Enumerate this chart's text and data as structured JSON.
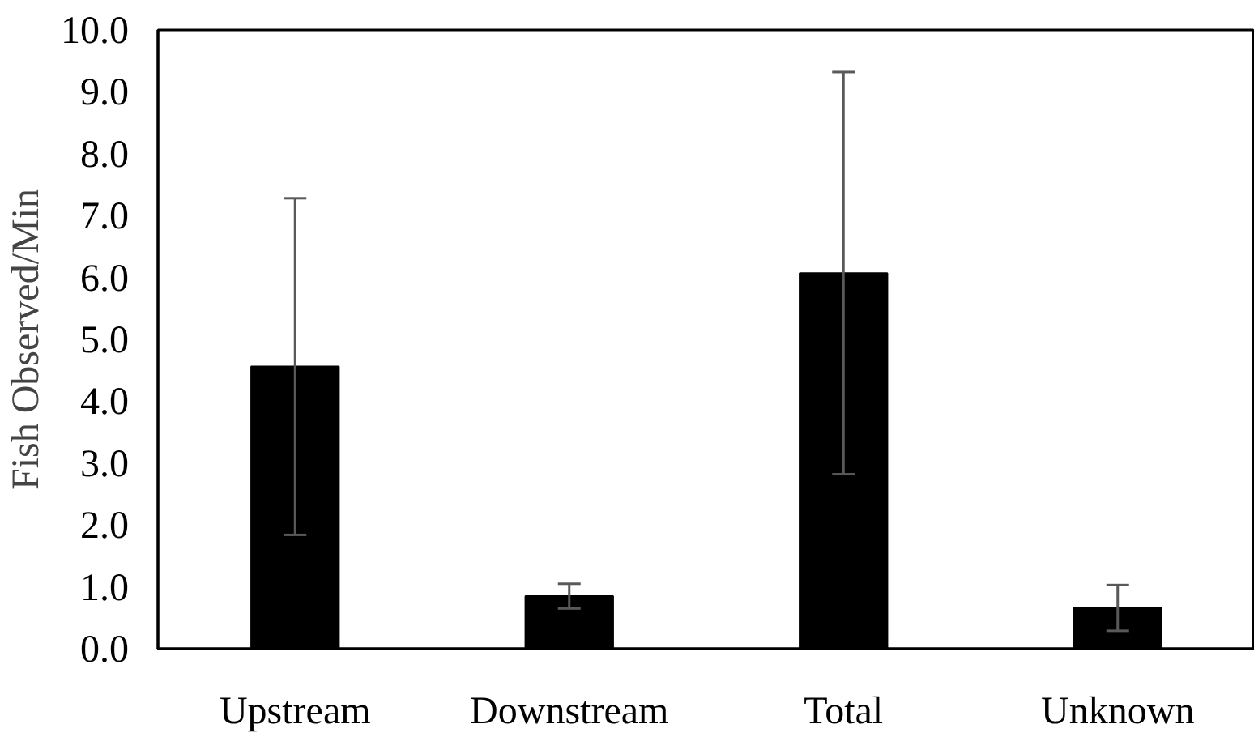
{
  "chart_data": {
    "type": "bar",
    "ylabel": "Fish Observed/Min",
    "categories": [
      "Upstream",
      "Downstream",
      "Total",
      "Unknown"
    ],
    "values": [
      4.56,
      0.85,
      6.07,
      0.66
    ],
    "errors": [
      2.72,
      0.2,
      3.25,
      0.37
    ],
    "color": "#000000",
    "ylim": [
      0,
      10
    ],
    "yticks": [
      {
        "value": 0,
        "label": "0.0"
      },
      {
        "value": 1,
        "label": "1.0"
      },
      {
        "value": 2,
        "label": "2.0"
      },
      {
        "value": 3,
        "label": "3.0"
      },
      {
        "value": 4,
        "label": "4.0"
      },
      {
        "value": 5,
        "label": "5.0"
      },
      {
        "value": 6,
        "label": "6.0"
      },
      {
        "value": 7,
        "label": "7.0"
      },
      {
        "value": 8,
        "label": "8.0"
      },
      {
        "value": 9,
        "label": "9.0"
      },
      {
        "value": 10,
        "label": "10.0"
      }
    ],
    "grid": false
  }
}
